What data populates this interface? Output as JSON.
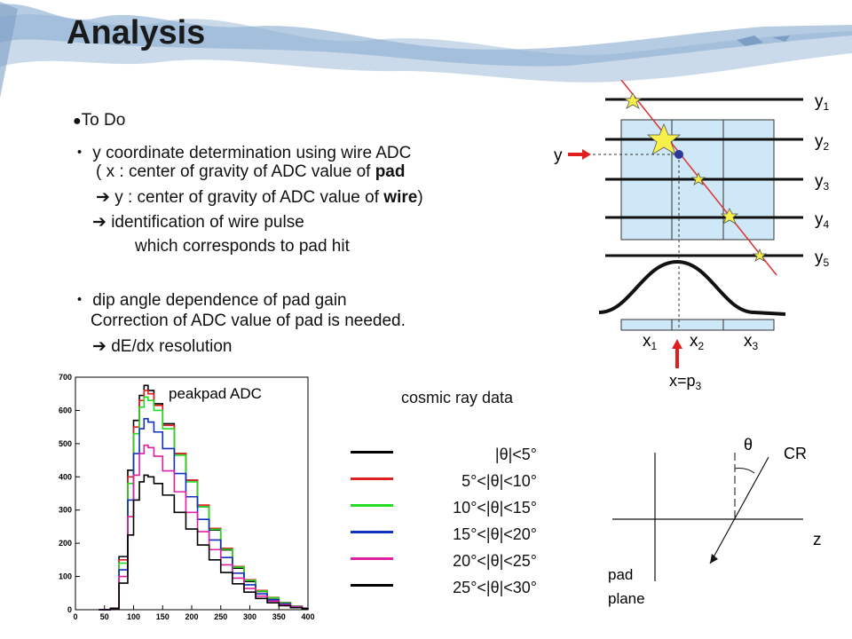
{
  "title": "Analysis",
  "todo": {
    "header": "To Do",
    "bullet_mark": "・",
    "bullet_dot": "●",
    "arrow": "➔",
    "item1": "y coordinate determination using wire ADC",
    "item1_line2_a": "( x : center of gravity of ADC value of ",
    "item1_line2_b": "pad",
    "item1_line3_a": " y : center of gravity of ADC value of ",
    "item1_line3_b": "wire",
    "item1_line3_c": ")",
    "item1_line4": "identification of wire pulse",
    "item1_line5": "which corresponds to pad hit",
    "item2": "dip angle dependence of pad gain",
    "item2_line2": "Correction of ADC value of pad is needed.",
    "item2_line3": "dE/dx resolution"
  },
  "wire_diagram": {
    "wires": [
      {
        "base": "y",
        "sub": "1"
      },
      {
        "base": "y",
        "sub": "2"
      },
      {
        "base": "y",
        "sub": "3"
      },
      {
        "base": "y",
        "sub": "4"
      },
      {
        "base": "y",
        "sub": "5"
      }
    ],
    "pads": [
      {
        "base": "x",
        "sub": "1"
      },
      {
        "base": "x",
        "sub": "2"
      },
      {
        "base": "x",
        "sub": "3"
      }
    ],
    "y_label": "y",
    "p_label_base": "x=p",
    "p_label_sub": "3",
    "colors": {
      "pad_fill": "#cfe8f8",
      "track": "#e03030",
      "arrow": "#e02020",
      "dot": "#2a3a9a"
    }
  },
  "angle_diagram": {
    "theta": "θ",
    "cr": "CR",
    "z": "z",
    "pad_line1": "pad",
    "pad_line2": "plane"
  },
  "legend": {
    "title": "cosmic ray data",
    "entries": [
      {
        "label": "|θ|<5°",
        "color": "#000000"
      },
      {
        "label": "5°<|θ|<10°",
        "color": "#e02020"
      },
      {
        "label": "10°<|θ|<15°",
        "color": "#22dd22"
      },
      {
        "label": "15°<|θ|<20°",
        "color": "#1030c0"
      },
      {
        "label": "20°<|θ|<25°",
        "color": "#e020a0"
      },
      {
        "label": "25°<|θ|<30°",
        "color": "#000000"
      }
    ]
  },
  "chart_data": {
    "type": "line",
    "title": "peakpad ADC",
    "xlabel": "",
    "ylabel": "",
    "xlim": [
      0,
      400
    ],
    "ylim": [
      0,
      700
    ],
    "x_ticks": [
      0,
      50,
      100,
      150,
      200,
      250,
      300,
      350,
      400
    ],
    "y_ticks": [
      0,
      100,
      200,
      300,
      400,
      500,
      600,
      700
    ],
    "x": [
      40,
      60,
      75,
      90,
      100,
      110,
      118,
      125,
      135,
      150,
      170,
      190,
      210,
      230,
      250,
      270,
      290,
      310,
      330,
      350,
      370,
      390,
      400
    ],
    "series": [
      {
        "color": "#000000",
        "values": [
          0,
          5,
          160,
          420,
          570,
          645,
          675,
          660,
          620,
          560,
          470,
          390,
          310,
          240,
          180,
          125,
          85,
          55,
          35,
          20,
          10,
          5,
          2
        ]
      },
      {
        "color": "#e02020",
        "values": [
          0,
          5,
          150,
          400,
          550,
          630,
          660,
          650,
          615,
          555,
          470,
          390,
          315,
          245,
          185,
          130,
          90,
          58,
          37,
          22,
          11,
          5,
          2
        ]
      },
      {
        "color": "#22dd22",
        "values": [
          0,
          5,
          140,
          380,
          530,
          610,
          640,
          630,
          600,
          545,
          465,
          385,
          310,
          242,
          182,
          128,
          88,
          56,
          36,
          21,
          10,
          5,
          2
        ]
      },
      {
        "color": "#1030c0",
        "values": [
          0,
          4,
          120,
          330,
          470,
          545,
          575,
          565,
          535,
          485,
          410,
          340,
          272,
          210,
          157,
          110,
          75,
          48,
          30,
          18,
          9,
          4,
          1
        ]
      },
      {
        "color": "#e020a0",
        "values": [
          0,
          4,
          100,
          280,
          405,
          470,
          495,
          488,
          462,
          418,
          355,
          293,
          235,
          181,
          135,
          95,
          64,
          41,
          26,
          15,
          8,
          4,
          1
        ]
      },
      {
        "color": "#000000",
        "values": [
          0,
          3,
          80,
          225,
          330,
          385,
          405,
          400,
          380,
          345,
          293,
          243,
          195,
          150,
          112,
          78,
          53,
          34,
          21,
          12,
          6,
          3,
          1
        ]
      }
    ]
  }
}
